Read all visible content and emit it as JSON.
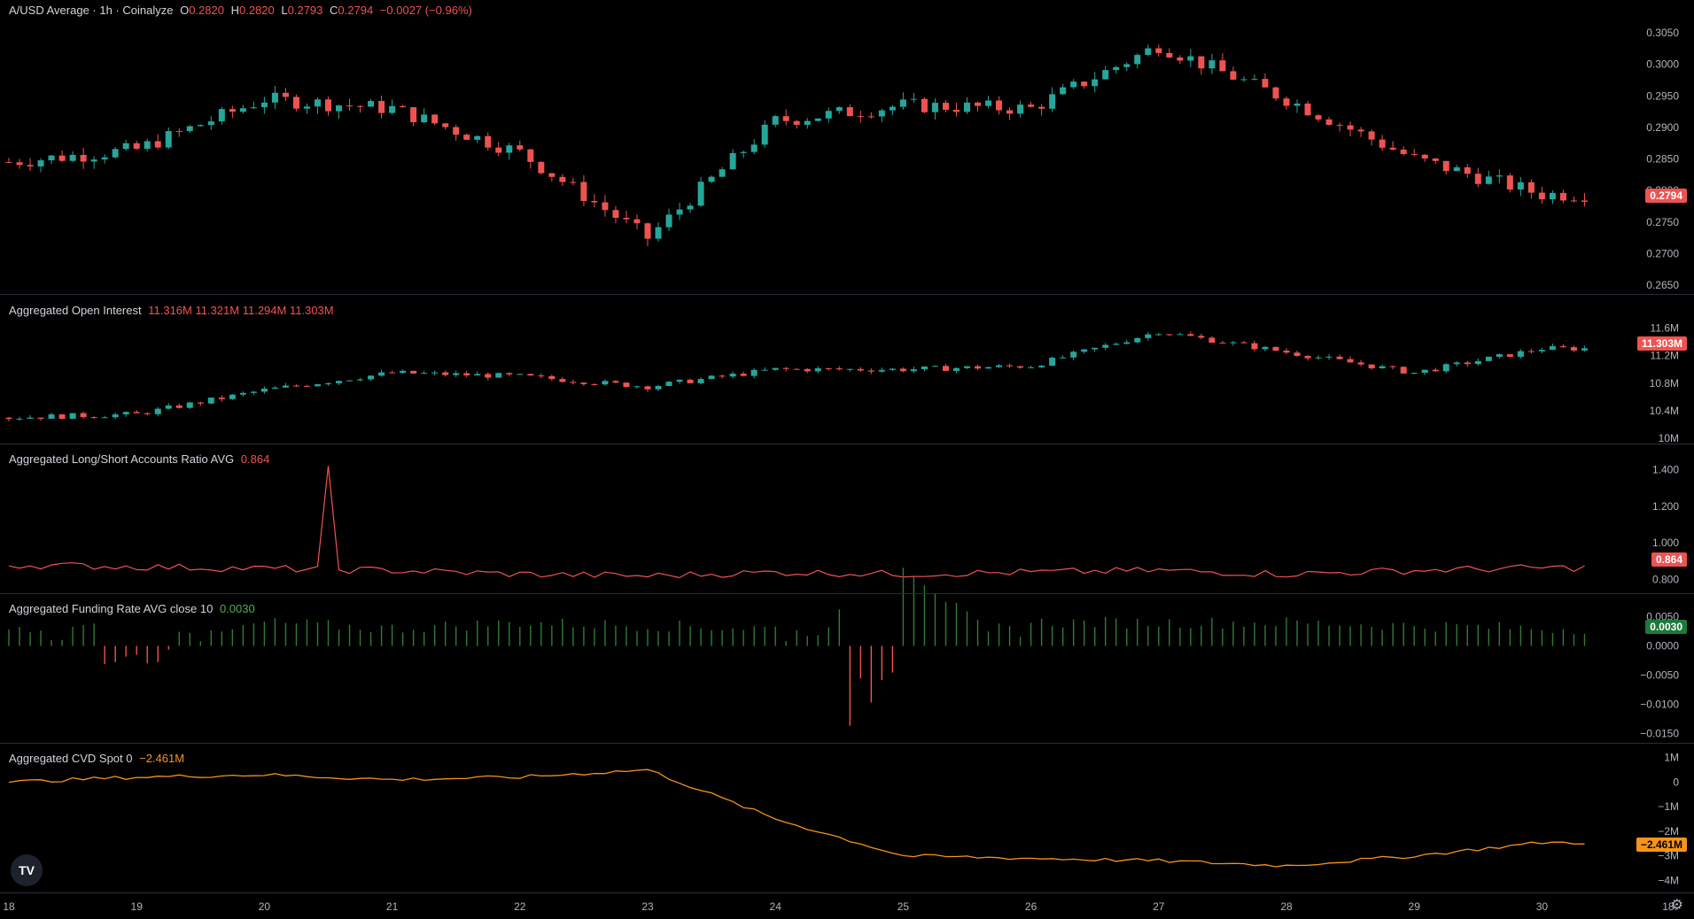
{
  "price": {
    "title": "A/USD Average · 1h · Coinalyze",
    "o_label": "O",
    "o": "0.2820",
    "h_label": "H",
    "h": "0.2820",
    "l_label": "L",
    "l": "0.2793",
    "c_label": "C",
    "c": "0.2794",
    "change": "−0.0027 (−0.96%)",
    "badge": "0.2794",
    "ticks": [
      "0.3050",
      "0.3000",
      "0.2950",
      "0.2900",
      "0.2850",
      "0.2800",
      "0.2750",
      "0.2700",
      "0.2650"
    ]
  },
  "oi": {
    "title": "Aggregated Open Interest",
    "values": "11.316M 11.321M 11.294M 11.303M",
    "badge": "11.303M",
    "ticks": [
      "11.6M",
      "11.2M",
      "10.8M",
      "10.4M",
      "10M"
    ]
  },
  "ls": {
    "title": "Aggregated Long/Short Accounts Ratio AVG",
    "value": "0.864",
    "badge": "0.864",
    "ticks": [
      "1.400",
      "1.200",
      "1.000",
      "0.800"
    ]
  },
  "fr": {
    "title": "Aggregated Funding Rate AVG close 10",
    "value": "0.0030",
    "badge": "0.0030",
    "ticks": [
      "0.0050",
      "0.0000",
      "−0.0050",
      "−0.0100",
      "−0.0150"
    ]
  },
  "cvd": {
    "title": "Aggregated CVD Spot 0",
    "value": "−2.461M",
    "badge": "−2.461M",
    "ticks": [
      "1M",
      "0",
      "−1M",
      "−2M",
      "−3M",
      "−4M"
    ]
  },
  "xaxis": [
    "18",
    "19",
    "20",
    "21",
    "22",
    "23",
    "24",
    "25",
    "26",
    "27",
    "28",
    "29",
    "30",
    "18:"
  ],
  "colors": {
    "up": "#26a69a",
    "down": "#ef5350",
    "ls_line": "#ef5350",
    "cvd_line": "#f7931a",
    "fr_pos": "#2e7d32",
    "fr_neg": "#ef5350"
  },
  "chart_data": [
    {
      "type": "candlestick",
      "title": "A/USD Average · 1h · Coinalyze",
      "x": [
        "18",
        "19",
        "20",
        "21",
        "22",
        "23",
        "24",
        "25",
        "26",
        "27",
        "28",
        "29",
        "30"
      ],
      "anchors_close": [
        0.2845,
        0.2865,
        0.2945,
        0.293,
        0.286,
        0.2725,
        0.291,
        0.2935,
        0.293,
        0.303,
        0.2945,
        0.285,
        0.2794
      ],
      "ylim": [
        0.265,
        0.306
      ]
    },
    {
      "type": "candlestick",
      "title": "Aggregated Open Interest",
      "x": [
        "18",
        "19",
        "20",
        "21",
        "22",
        "23",
        "24",
        "25",
        "26",
        "27",
        "28",
        "29",
        "30"
      ],
      "anchors_close_M": [
        10.3,
        10.35,
        10.7,
        10.95,
        10.9,
        10.75,
        11.0,
        11.0,
        11.05,
        11.55,
        11.25,
        10.95,
        11.303
      ],
      "ylim_M": [
        10.0,
        11.8
      ]
    },
    {
      "type": "line",
      "title": "Aggregated Long/Short Accounts Ratio AVG",
      "x": [
        "18",
        "19",
        "20",
        "21",
        "22",
        "23",
        "24",
        "25",
        "26",
        "27",
        "28",
        "29",
        "30"
      ],
      "anchors": [
        0.88,
        0.87,
        0.86,
        0.85,
        0.83,
        0.82,
        0.84,
        0.83,
        0.84,
        0.85,
        0.83,
        0.85,
        0.864
      ],
      "spike": {
        "x": "20.5",
        "value": 1.42
      },
      "ylim": [
        0.75,
        1.45
      ]
    },
    {
      "type": "bar",
      "title": "Aggregated Funding Rate AVG close 10",
      "x": [
        "18",
        "19",
        "20",
        "21",
        "22",
        "23",
        "24",
        "25",
        "26",
        "27",
        "28",
        "29",
        "30"
      ],
      "anchors": [
        0.003,
        -0.0015,
        0.004,
        0.003,
        0.004,
        0.0035,
        0.003,
        -0.014,
        0.004,
        0.004,
        0.004,
        0.0035,
        0.003
      ],
      "ylim": [
        -0.016,
        0.006
      ]
    },
    {
      "type": "line",
      "title": "Aggregated CVD Spot 0",
      "x": [
        "18",
        "19",
        "20",
        "21",
        "22",
        "23",
        "24",
        "25",
        "26",
        "27",
        "28",
        "29",
        "30"
      ],
      "anchors_M": [
        0.0,
        0.2,
        0.3,
        0.1,
        0.2,
        0.5,
        -1.5,
        -3.0,
        -3.1,
        -3.2,
        -3.4,
        -3.0,
        -2.461
      ],
      "ylim_M": [
        -4.2,
        1.2
      ]
    }
  ]
}
